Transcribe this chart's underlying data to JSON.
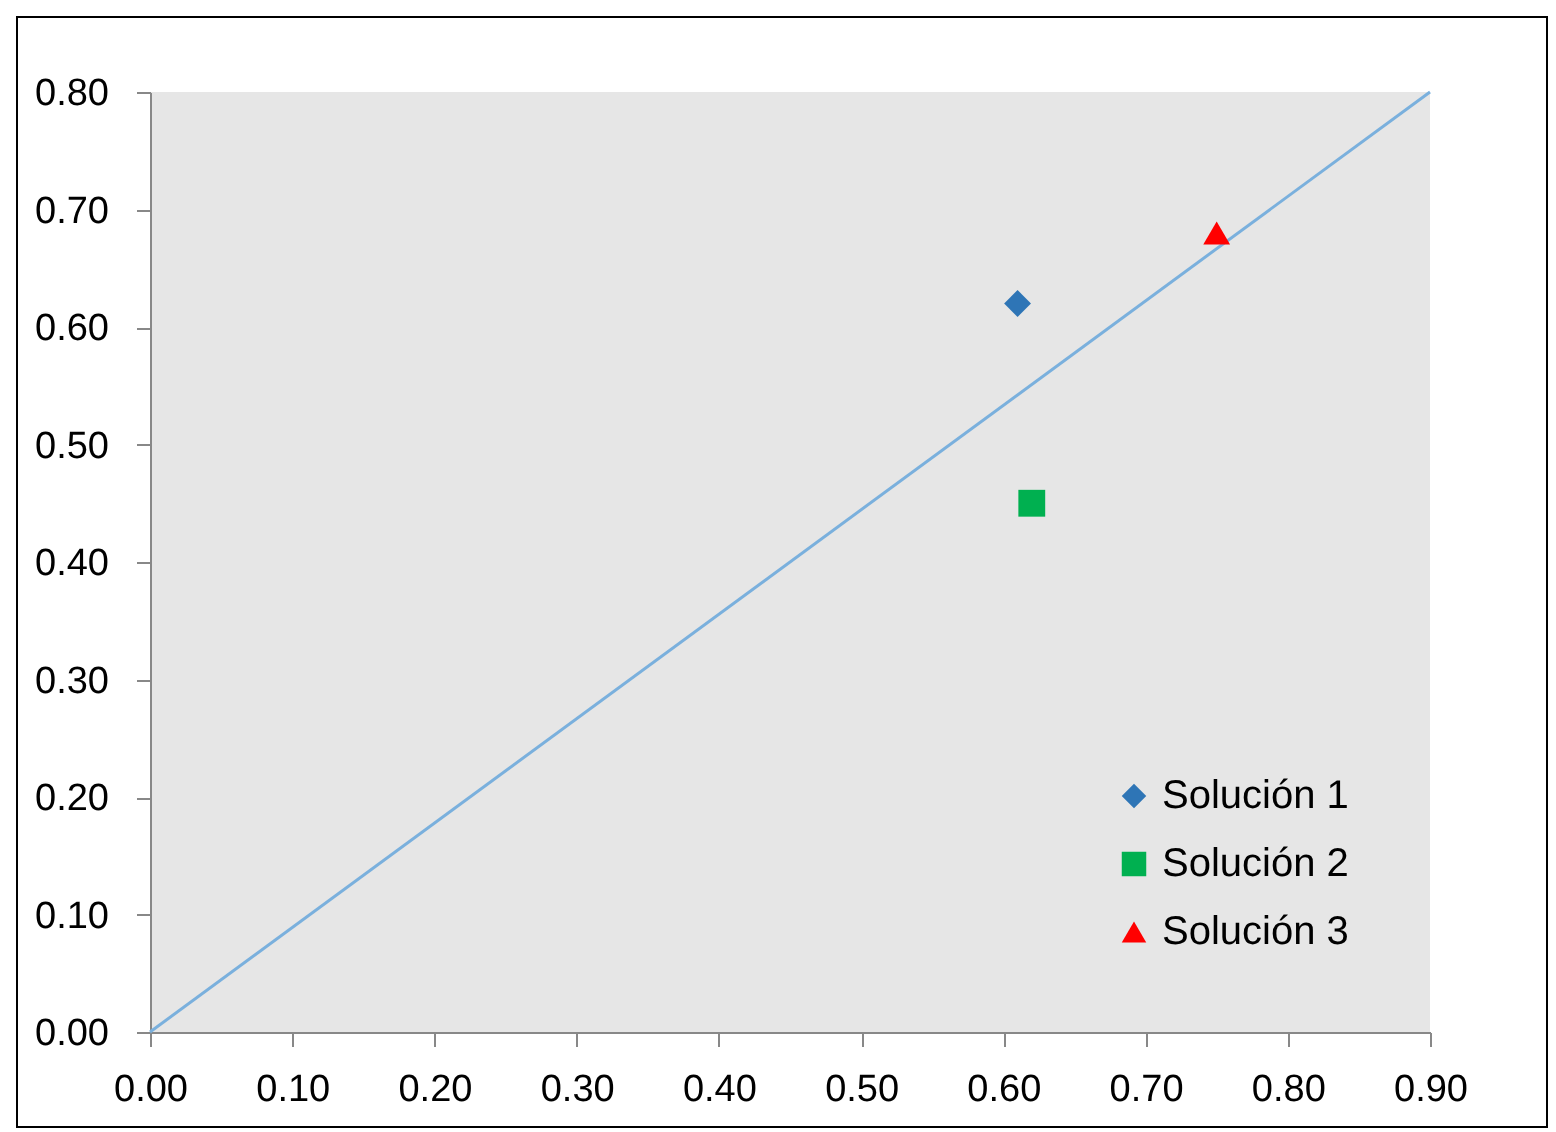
{
  "chart_data": {
    "type": "scatter",
    "xlim": [
      0,
      0.9
    ],
    "ylim": [
      0,
      0.8
    ],
    "xticks": [
      {
        "value": 0,
        "label": "0.00"
      },
      {
        "value": 0.1,
        "label": "0.10"
      },
      {
        "value": 0.2,
        "label": "0.20"
      },
      {
        "value": 0.3,
        "label": "0.30"
      },
      {
        "value": 0.4,
        "label": "0.40"
      },
      {
        "value": 0.5,
        "label": "0.50"
      },
      {
        "value": 0.6,
        "label": "0.60"
      },
      {
        "value": 0.7,
        "label": "0.70"
      },
      {
        "value": 0.8,
        "label": "0.80"
      },
      {
        "value": 0.9,
        "label": "0.90"
      }
    ],
    "yticks": [
      {
        "value": 0,
        "label": "0.00"
      },
      {
        "value": 0.1,
        "label": "0.10"
      },
      {
        "value": 0.2,
        "label": "0.20"
      },
      {
        "value": 0.3,
        "label": "0.30"
      },
      {
        "value": 0.4,
        "label": "0.40"
      },
      {
        "value": 0.5,
        "label": "0.50"
      },
      {
        "value": 0.6,
        "label": "0.60"
      },
      {
        "value": 0.7,
        "label": "0.70"
      },
      {
        "value": 0.8,
        "label": "0.80"
      }
    ],
    "grid": false,
    "legend": "bottom right",
    "series": [
      {
        "type": "line",
        "color": "#7ab0dd",
        "x": [
          0,
          0.9
        ],
        "values": [
          0,
          0.8
        ]
      },
      {
        "name": "Solución 1",
        "color": "#2e75b6",
        "marker": "diamond",
        "x": [
          0.61
        ],
        "values": [
          0.62
        ]
      },
      {
        "name": "Solución 2",
        "color": "#00b050",
        "marker": "square",
        "x": [
          0.62
        ],
        "values": [
          0.45
        ]
      },
      {
        "name": "Solución 3",
        "color": "#ff0000",
        "marker": "triangle",
        "x": [
          0.75
        ],
        "values": [
          0.68
        ]
      }
    ]
  }
}
